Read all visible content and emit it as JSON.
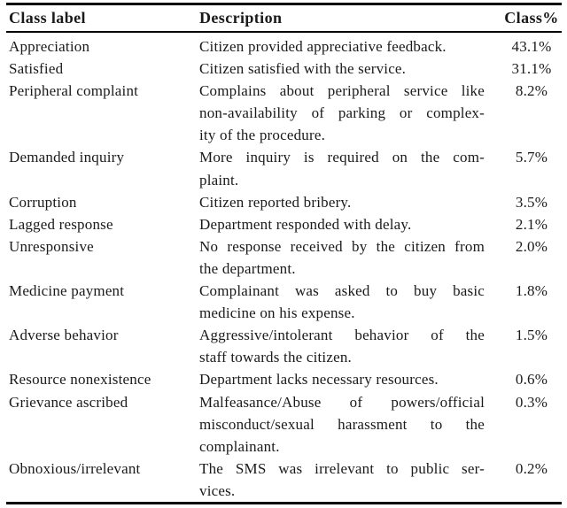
{
  "figure": {
    "kind": "academic-paper-table"
  },
  "colors": {
    "text": "#1a1a1a",
    "rule": "#000000",
    "background": "#ffffff"
  },
  "table": {
    "columns": [
      "Class label",
      "Description",
      "Class%"
    ],
    "rows": [
      {
        "label": "Appreciation",
        "description_lines": [
          "Citizen provided appreciative feedback."
        ],
        "percent": "43.1%"
      },
      {
        "label": "Satisfied",
        "description_lines": [
          "Citizen satisfied with the service."
        ],
        "percent": "31.1%"
      },
      {
        "label": "Peripheral complaint",
        "description_lines": [
          "Complains about peripheral service like",
          "non-availability of parking or complex-",
          "ity of the procedure."
        ],
        "percent": "8.2%"
      },
      {
        "label": "Demanded inquiry",
        "description_lines": [
          "More inquiry is required on the com-",
          "plaint."
        ],
        "percent": "5.7%"
      },
      {
        "label": "Corruption",
        "description_lines": [
          "Citizen reported bribery."
        ],
        "percent": "3.5%"
      },
      {
        "label": "Lagged response",
        "description_lines": [
          "Department responded with delay."
        ],
        "percent": "2.1%"
      },
      {
        "label": "Unresponsive",
        "description_lines": [
          "No response received by the citizen from",
          "the department."
        ],
        "percent": "2.0%"
      },
      {
        "label": "Medicine payment",
        "description_lines": [
          "Complainant was asked to buy basic",
          "medicine on his expense."
        ],
        "percent": "1.8%"
      },
      {
        "label": "Adverse behavior",
        "description_lines": [
          "Aggressive/intolerant behavior of the",
          "staff towards the citizen."
        ],
        "percent": "1.5%"
      },
      {
        "label": "Resource nonexistence",
        "description_lines": [
          "Department lacks necessary resources."
        ],
        "percent": "0.6%"
      },
      {
        "label": "Grievance ascribed",
        "description_lines": [
          "Malfeasance/Abuse of powers/official",
          "misconduct/sexual harassment to the",
          "complainant."
        ],
        "percent": "0.3%"
      },
      {
        "label": "Obnoxious/irrelevant",
        "description_lines": [
          "The SMS was irrelevant to public ser-",
          "vices."
        ],
        "percent": "0.2%"
      }
    ]
  }
}
